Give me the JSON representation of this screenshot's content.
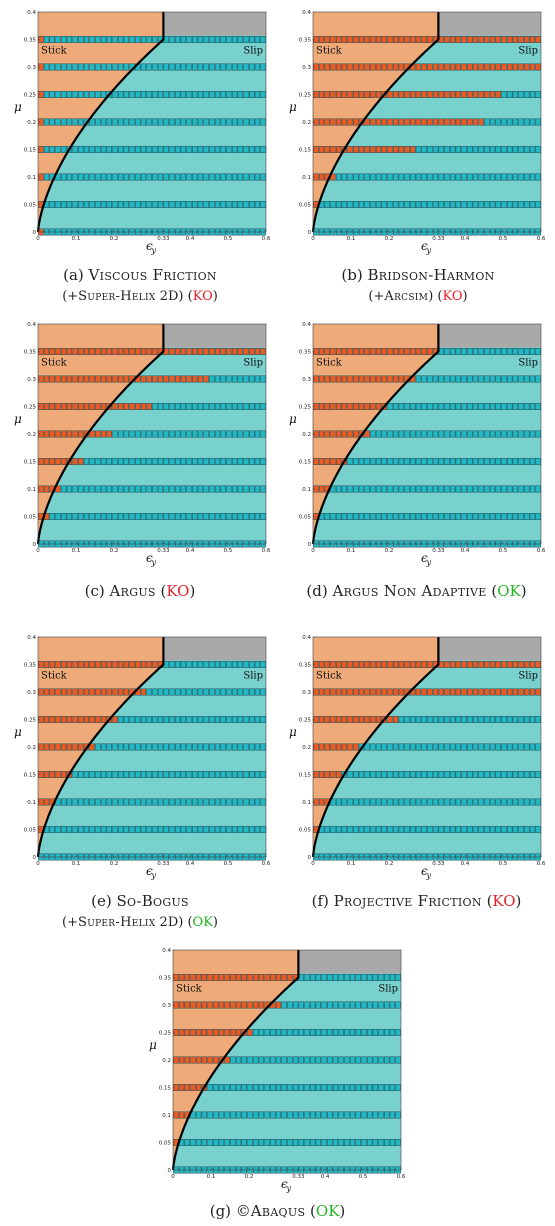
{
  "colors": {
    "stick": "#eeaa78",
    "slip": "#79d1cd",
    "gray": "#a9a9a9",
    "sq_slip": "#21b8c4",
    "sq_stick": "#ec5a24",
    "ok": "#22b522",
    "ko": "#e8202a"
  },
  "axes": {
    "y_ticks": [
      "0",
      "0.05",
      "0.1",
      "0.15",
      "0.2",
      "0.25",
      "0.3",
      "0.35",
      "0.4"
    ],
    "x_ticks": [
      "0",
      "0.1",
      "0.2",
      "0.33",
      "0.4",
      "0.5",
      "0.6"
    ],
    "y_label": "μ",
    "x_label": "ϵ",
    "x_label_sub": "y",
    "stick_label": "Stick",
    "slip_label": "Slip"
  },
  "panels": [
    {
      "id": "a",
      "prefix": "(a) ",
      "name": "Viscous Friction",
      "sub_prefix": "(+",
      "sub_name": "Super-Helix",
      "sub_tail": " 2D)  (",
      "status": "KO",
      "close": ")"
    },
    {
      "id": "b",
      "prefix": "(b) ",
      "name": "Bridson-Harmon",
      "sub_prefix": "(+",
      "sub_name": "Arcsim",
      "sub_tail": ")  (",
      "status": "KO",
      "close": ")"
    },
    {
      "id": "c",
      "prefix": "(c) ",
      "name": "Argus",
      "tail": " (",
      "status": "KO",
      "close": ")"
    },
    {
      "id": "d",
      "prefix": "(d) ",
      "name": "Argus Non Adaptive",
      "tail": " (",
      "status": "OK",
      "close": ")"
    },
    {
      "id": "e",
      "prefix": "(e) ",
      "name": "So-Bogus",
      "sub_prefix": "(+",
      "sub_name": "Super-Helix",
      "sub_tail": " 2D)  (",
      "status": "OK",
      "close": ")"
    },
    {
      "id": "f",
      "prefix": "(f) ",
      "name": "Projective Friction",
      "tail": " (",
      "status": "KO",
      "close": ")"
    },
    {
      "id": "g",
      "prefix": "(g) ©",
      "name": "Abaqus",
      "tail": " (",
      "status": "OK",
      "close": ")"
    }
  ],
  "chart_data": {
    "type": "scatter",
    "x_range": [
      0,
      0.6
    ],
    "y_range": [
      0,
      0.4
    ],
    "rows_mu": [
      0,
      0.05,
      0.1,
      0.15,
      0.2,
      0.25,
      0.3,
      0.35
    ],
    "columns_per_row": 40,
    "boundary_end_x": 0.33,
    "stick_columns_per_row": {
      "a": [
        1,
        1,
        1,
        1,
        1,
        1,
        1,
        1
      ],
      "b": [
        0,
        1,
        4,
        18,
        30,
        33,
        40,
        40
      ],
      "c": [
        0,
        2,
        4,
        8,
        13,
        20,
        30,
        40
      ],
      "d": [
        0,
        1,
        3,
        6,
        10,
        13,
        18,
        22
      ],
      "e": [
        0,
        1,
        3,
        6,
        10,
        14,
        19,
        22
      ],
      "f": [
        0,
        1,
        3,
        5,
        8,
        15,
        40,
        40
      ],
      "g": [
        0,
        1,
        3,
        6,
        10,
        14,
        19,
        22
      ]
    }
  }
}
